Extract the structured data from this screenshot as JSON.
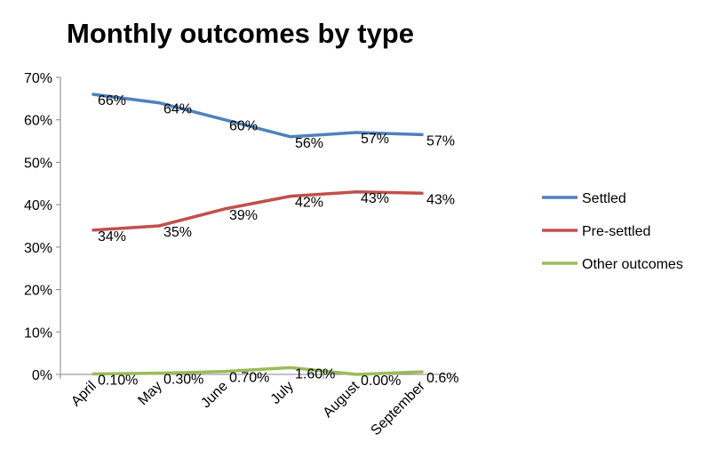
{
  "chart_data": {
    "type": "line",
    "title": "Monthly outcomes by type",
    "categories": [
      "April",
      "May",
      "June",
      "July",
      "August",
      "September"
    ],
    "y_ticks": [
      "0%",
      "10%",
      "20%",
      "30%",
      "40%",
      "50%",
      "60%",
      "70%"
    ],
    "ylim": [
      0,
      70
    ],
    "legend_position": "right",
    "grid": false,
    "series": [
      {
        "name": "Settled",
        "color": "#4F81BD",
        "values": [
          66,
          64,
          60,
          56,
          57,
          56.5
        ],
        "labels": [
          "66%",
          "64%",
          "60%",
          "56%",
          "57%",
          "57%"
        ]
      },
      {
        "name": "Pre-settled",
        "color": "#C0504D",
        "values": [
          34,
          35,
          39,
          42,
          43,
          42.7
        ],
        "labels": [
          "34%",
          "35%",
          "39%",
          "42%",
          "43%",
          "43%"
        ]
      },
      {
        "name": "Other outcomes",
        "color": "#9BBB59",
        "values": [
          0.1,
          0.3,
          0.7,
          1.6,
          0.0,
          0.6
        ],
        "labels": [
          "0.10%",
          "0.30%",
          "0.70%",
          "1.60%",
          "0.00%",
          "0.6%"
        ]
      }
    ]
  }
}
